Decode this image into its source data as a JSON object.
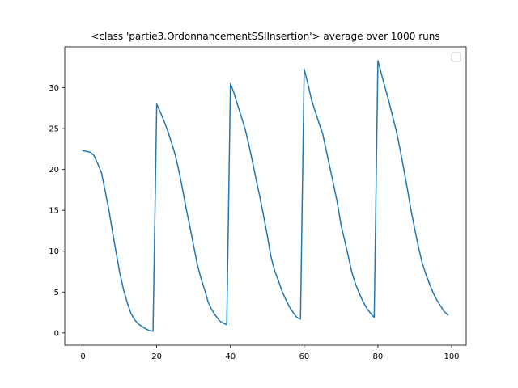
{
  "chart_data": {
    "type": "line",
    "title": "<class 'partie3.OrdonnancementSSIInsertion'> average over 1000 runs",
    "xlabel": "",
    "ylabel": "",
    "xlim": [
      -4.95,
      103.95
    ],
    "ylim": [
      -1.5,
      35
    ],
    "xticks": [
      0,
      20,
      40,
      60,
      80,
      100
    ],
    "yticks": [
      0,
      5,
      10,
      15,
      20,
      25,
      30
    ],
    "xtick_labels": [
      "0",
      "20",
      "40",
      "60",
      "80",
      "100"
    ],
    "ytick_labels": [
      "0",
      "5",
      "10",
      "15",
      "20",
      "25",
      "30"
    ],
    "grid": false,
    "legend": {
      "placement": "upper-right",
      "entries": []
    },
    "series": [
      {
        "color": "#1f77b4",
        "x": [
          0,
          1,
          2,
          3,
          4,
          5,
          6,
          7,
          8,
          9,
          10,
          11,
          12,
          13,
          14,
          15,
          16,
          17,
          18,
          19,
          20,
          21,
          22,
          23,
          24,
          25,
          26,
          27,
          28,
          29,
          30,
          31,
          32,
          33,
          34,
          35,
          36,
          37,
          38,
          39,
          40,
          41,
          42,
          43,
          44,
          45,
          46,
          47,
          48,
          49,
          50,
          51,
          52,
          53,
          54,
          55,
          56,
          57,
          58,
          59,
          60,
          61,
          62,
          63,
          64,
          65,
          66,
          67,
          68,
          69,
          70,
          71,
          72,
          73,
          74,
          75,
          76,
          77,
          78,
          79,
          80,
          81,
          82,
          83,
          84,
          85,
          86,
          87,
          88,
          89,
          90,
          91,
          92,
          93,
          94,
          95,
          96,
          97,
          98,
          99
        ],
        "y": [
          22.3,
          22.2,
          22.1,
          21.7,
          20.7,
          19.6,
          17.4,
          15.1,
          12.4,
          9.8,
          7.3,
          5.3,
          3.7,
          2.4,
          1.6,
          1.1,
          0.8,
          0.5,
          0.3,
          0.2,
          28.0,
          27.0,
          25.9,
          24.7,
          23.3,
          21.8,
          19.9,
          17.6,
          15.2,
          13.0,
          10.7,
          8.4,
          6.7,
          5.3,
          3.7,
          2.8,
          2.1,
          1.5,
          1.2,
          1.0,
          30.5,
          29.3,
          27.8,
          26.4,
          24.9,
          23.0,
          20.9,
          18.7,
          16.6,
          14.3,
          11.9,
          9.3,
          7.6,
          6.4,
          5.1,
          4.1,
          3.2,
          2.5,
          1.9,
          1.7,
          32.3,
          30.5,
          28.5,
          27.1,
          25.7,
          24.4,
          22.3,
          20.2,
          18.1,
          15.9,
          13.2,
          11.3,
          9.3,
          7.3,
          5.9,
          4.8,
          3.8,
          3.0,
          2.4,
          1.9,
          33.3,
          31.6,
          29.9,
          28.3,
          26.5,
          24.7,
          22.5,
          20.1,
          17.6,
          15.0,
          12.7,
          10.5,
          8.6,
          7.2,
          6.0,
          4.9,
          4.0,
          3.3,
          2.6,
          2.2
        ]
      }
    ]
  }
}
